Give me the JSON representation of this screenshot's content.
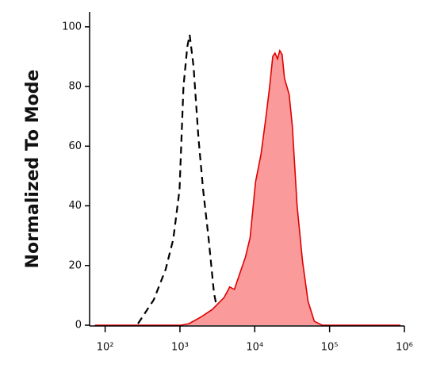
{
  "chart_data": {
    "type": "histogram-overlay",
    "y_label": "Normalized To Mode",
    "xscale": "log",
    "xlim": [
      62,
      1000000
    ],
    "ylim": [
      0,
      105
    ],
    "xticks": [
      {
        "value": 100,
        "label": "10²"
      },
      {
        "value": 1000,
        "label": "10³"
      },
      {
        "value": 10000,
        "label": "10⁴"
      },
      {
        "value": 100000,
        "label": "10⁵"
      },
      {
        "value": 1000000,
        "label": "10⁶"
      }
    ],
    "yticks": [
      0,
      20,
      40,
      60,
      80,
      100
    ],
    "series": [
      {
        "color": "#000000",
        "dash": true,
        "fill": null,
        "x": [
          275,
          447,
          644,
          813,
          988,
          1115,
          1255,
          1350,
          1520,
          1770,
          2040,
          2410,
          2850,
          3300,
          3880
        ],
        "values": [
          0.5,
          8.5,
          18.7,
          28.8,
          45.3,
          80,
          93.3,
          97.3,
          86.7,
          62.7,
          45.3,
          29.3,
          10.7,
          2.7,
          0
        ]
      },
      {
        "color": "#e00000",
        "dash": false,
        "fill": "#fa9a9a",
        "x": [
          73,
          1038,
          1320,
          1900,
          2720,
          3900,
          4620,
          5340,
          6310,
          7480,
          8650,
          10240,
          12130,
          14030,
          15840,
          17390,
          18640,
          20130,
          21640,
          23240,
          24980,
          28870,
          31830,
          36800,
          43540,
          51570,
          62520,
          79430,
          887000
        ],
        "values": [
          0,
          0,
          0.5,
          2.7,
          5.3,
          9.3,
          12.8,
          12,
          17.3,
          22.7,
          29.3,
          48,
          57.3,
          69.3,
          80,
          90.1,
          91.2,
          89.3,
          92,
          90.7,
          82.7,
          77.3,
          66.7,
          40,
          21.3,
          8,
          1.3,
          0,
          0
        ]
      }
    ]
  }
}
